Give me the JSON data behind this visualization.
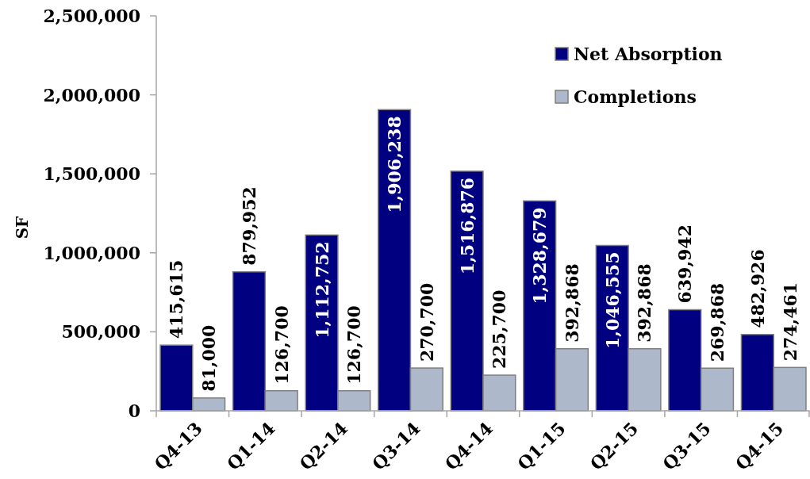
{
  "chart_data": {
    "type": "bar",
    "ylabel": "SF",
    "categories": [
      "Q4-13",
      "Q1-14",
      "Q2-14",
      "Q3-14",
      "Q4-14",
      "Q1-15",
      "Q2-15",
      "Q3-15",
      "Q4-15"
    ],
    "series": [
      {
        "name": "Net Absorption",
        "color": "#000080",
        "values": [
          415615,
          879952,
          1112752,
          1906238,
          1516876,
          1328679,
          1046555,
          639942,
          482926
        ],
        "value_labels": [
          "415,615",
          "879,952",
          "1,112,752",
          "1,906,238",
          "1,516,876",
          "1,328,679",
          "1,046,555",
          "639,942",
          "482,926"
        ]
      },
      {
        "name": "Completions",
        "color": "#adb9ca",
        "values": [
          81000,
          126700,
          126700,
          270700,
          225700,
          392868,
          392868,
          269868,
          274461
        ],
        "value_labels": [
          "81,000",
          "126,700",
          "126,700",
          "270,700",
          "225,700",
          "392,868",
          "392,868",
          "269,868",
          "274,461"
        ]
      }
    ],
    "ylim": [
      0,
      2500000
    ],
    "yticks": [
      {
        "value": 0,
        "label": "0"
      },
      {
        "value": 500000,
        "label": "500,000"
      },
      {
        "value": 1000000,
        "label": "1,000,000"
      },
      {
        "value": 1500000,
        "label": "1,500,000"
      },
      {
        "value": 2000000,
        "label": "2,000,000"
      },
      {
        "value": 2500000,
        "label": "2,500,000"
      }
    ],
    "legend": "top right"
  }
}
